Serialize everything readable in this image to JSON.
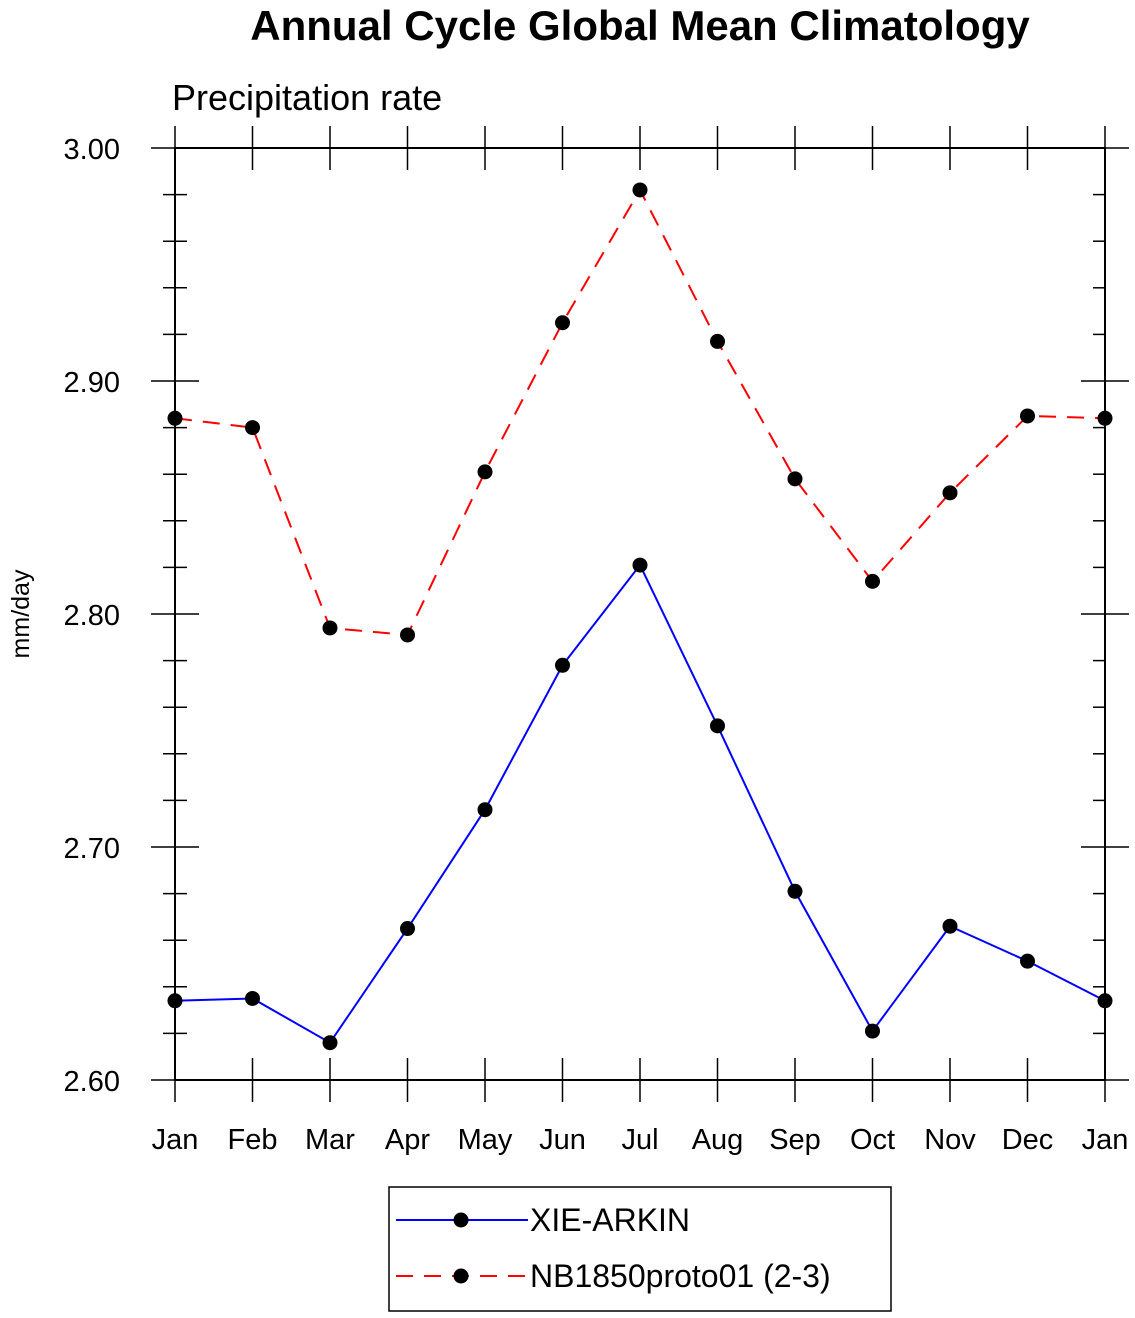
{
  "chart_data": {
    "type": "line",
    "title": "Annual Cycle Global Mean Climatology",
    "subtitle": "Precipitation rate",
    "xlabel": "",
    "ylabel": "mm/day",
    "categories": [
      "Jan",
      "Feb",
      "Mar",
      "Apr",
      "May",
      "Jun",
      "Jul",
      "Aug",
      "Sep",
      "Oct",
      "Nov",
      "Dec",
      "Jan"
    ],
    "ylim": [
      2.6,
      3.0
    ],
    "yticks": [
      "2.60",
      "2.70",
      "2.80",
      "2.90",
      "3.00"
    ],
    "grid": false,
    "legend_position": "bottom-center",
    "series": [
      {
        "name": "XIE-ARKIN",
        "color": "#0000ff",
        "dash": "solid",
        "marker": "filled-circle",
        "values": [
          2.634,
          2.635,
          2.616,
          2.665,
          2.716,
          2.778,
          2.821,
          2.752,
          2.681,
          2.621,
          2.666,
          2.651,
          2.634
        ]
      },
      {
        "name": "NB1850proto01 (2-3)",
        "color": "#ff0000",
        "dash": "dashed",
        "marker": "filled-circle",
        "values": [
          2.884,
          2.88,
          2.794,
          2.791,
          2.861,
          2.925,
          2.982,
          2.917,
          2.858,
          2.814,
          2.852,
          2.885,
          2.884
        ]
      }
    ]
  }
}
